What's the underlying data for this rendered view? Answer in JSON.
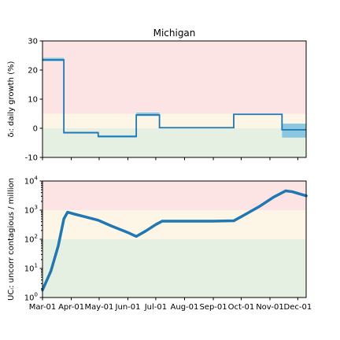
{
  "chart_data": [
    {
      "type": "line",
      "title": "Michigan",
      "ylabel": "δᵢ: daily growth (%)",
      "ylim": [
        -10,
        30
      ],
      "yticks": [
        -10,
        0,
        10,
        20,
        30
      ],
      "x_range": [
        "2020-03-01",
        "2020-12-10"
      ],
      "bands": [
        {
          "from": 5,
          "to": 30,
          "color": "#fde4e4"
        },
        {
          "from": 0,
          "to": 5,
          "color": "#fdf5e6"
        },
        {
          "from": -10,
          "to": 0,
          "color": "#e6f0e2"
        }
      ],
      "step_series": {
        "name": "",
        "color": "#1f77b4",
        "band_color": "#7ec3e0",
        "segments": [
          {
            "start": "2020-03-01",
            "end": "2020-03-24",
            "value": 23.5,
            "lo": 23.0,
            "hi": 24.2
          },
          {
            "start": "2020-03-24",
            "end": "2020-04-30",
            "value": -1.5,
            "lo": -1.8,
            "hi": -1.2
          },
          {
            "start": "2020-04-30",
            "end": "2020-06-10",
            "value": -2.8,
            "lo": -3.2,
            "hi": -2.4
          },
          {
            "start": "2020-06-10",
            "end": "2020-07-05",
            "value": 4.6,
            "lo": 4.2,
            "hi": 5.4
          },
          {
            "start": "2020-07-05",
            "end": "2020-09-23",
            "value": 0.2,
            "lo": 0.1,
            "hi": 0.3
          },
          {
            "start": "2020-09-23",
            "end": "2020-11-14",
            "value": 4.8,
            "lo": 4.6,
            "hi": 5.0
          },
          {
            "start": "2020-11-14",
            "end": "2020-12-10",
            "value": -0.5,
            "lo": -3.2,
            "hi": 1.6
          }
        ]
      }
    },
    {
      "type": "line",
      "ylabel": "UCᵢ: uncorr contagious / million",
      "yscale": "log",
      "ylim": [
        1,
        10000
      ],
      "yticks": [
        1,
        10,
        100,
        1000,
        10000
      ],
      "ytick_labels": [
        {
          "base": "10",
          "exp": "0"
        },
        {
          "base": "10",
          "exp": "1"
        },
        {
          "base": "10",
          "exp": "2"
        },
        {
          "base": "10",
          "exp": "3"
        },
        {
          "base": "10",
          "exp": "4"
        }
      ],
      "x_range": [
        "2020-03-01",
        "2020-12-10"
      ],
      "xticks": [
        {
          "date": "2020-03-01",
          "label": "Mar-01"
        },
        {
          "date": "2020-04-01",
          "label": "Apr-01"
        },
        {
          "date": "2020-05-01",
          "label": "May-01"
        },
        {
          "date": "2020-06-01",
          "label": "Jun-01"
        },
        {
          "date": "2020-07-01",
          "label": "Jul-01"
        },
        {
          "date": "2020-08-01",
          "label": "Aug-01"
        },
        {
          "date": "2020-09-01",
          "label": "Sep-01"
        },
        {
          "date": "2020-10-01",
          "label": "Oct-01"
        },
        {
          "date": "2020-11-01",
          "label": "Nov-01"
        },
        {
          "date": "2020-12-01",
          "label": "Dec-01"
        }
      ],
      "bands": [
        {
          "from": 1000,
          "to": 10000,
          "color": "#fde4e4"
        },
        {
          "from": 100,
          "to": 1000,
          "color": "#fdf5e6"
        },
        {
          "from": 1,
          "to": 100,
          "color": "#e6f0e2"
        }
      ],
      "series": [
        {
          "name": "",
          "color": "#1f77b4",
          "points": [
            [
              "2020-03-01",
              1.8
            ],
            [
              "2020-03-10",
              8
            ],
            [
              "2020-03-18",
              60
            ],
            [
              "2020-03-24",
              500
            ],
            [
              "2020-03-28",
              850
            ],
            [
              "2020-04-03",
              750
            ],
            [
              "2020-04-15",
              600
            ],
            [
              "2020-04-30",
              450
            ],
            [
              "2020-05-15",
              280
            ],
            [
              "2020-06-01",
              170
            ],
            [
              "2020-06-10",
              125
            ],
            [
              "2020-06-20",
              190
            ],
            [
              "2020-07-01",
              320
            ],
            [
              "2020-07-08",
              420
            ],
            [
              "2020-08-01",
              420
            ],
            [
              "2020-09-01",
              420
            ],
            [
              "2020-09-23",
              430
            ],
            [
              "2020-10-05",
              700
            ],
            [
              "2020-10-20",
              1300
            ],
            [
              "2020-11-05",
              2800
            ],
            [
              "2020-11-18",
              4600
            ],
            [
              "2020-11-25",
              4300
            ],
            [
              "2020-12-10",
              3100
            ]
          ]
        }
      ]
    }
  ]
}
